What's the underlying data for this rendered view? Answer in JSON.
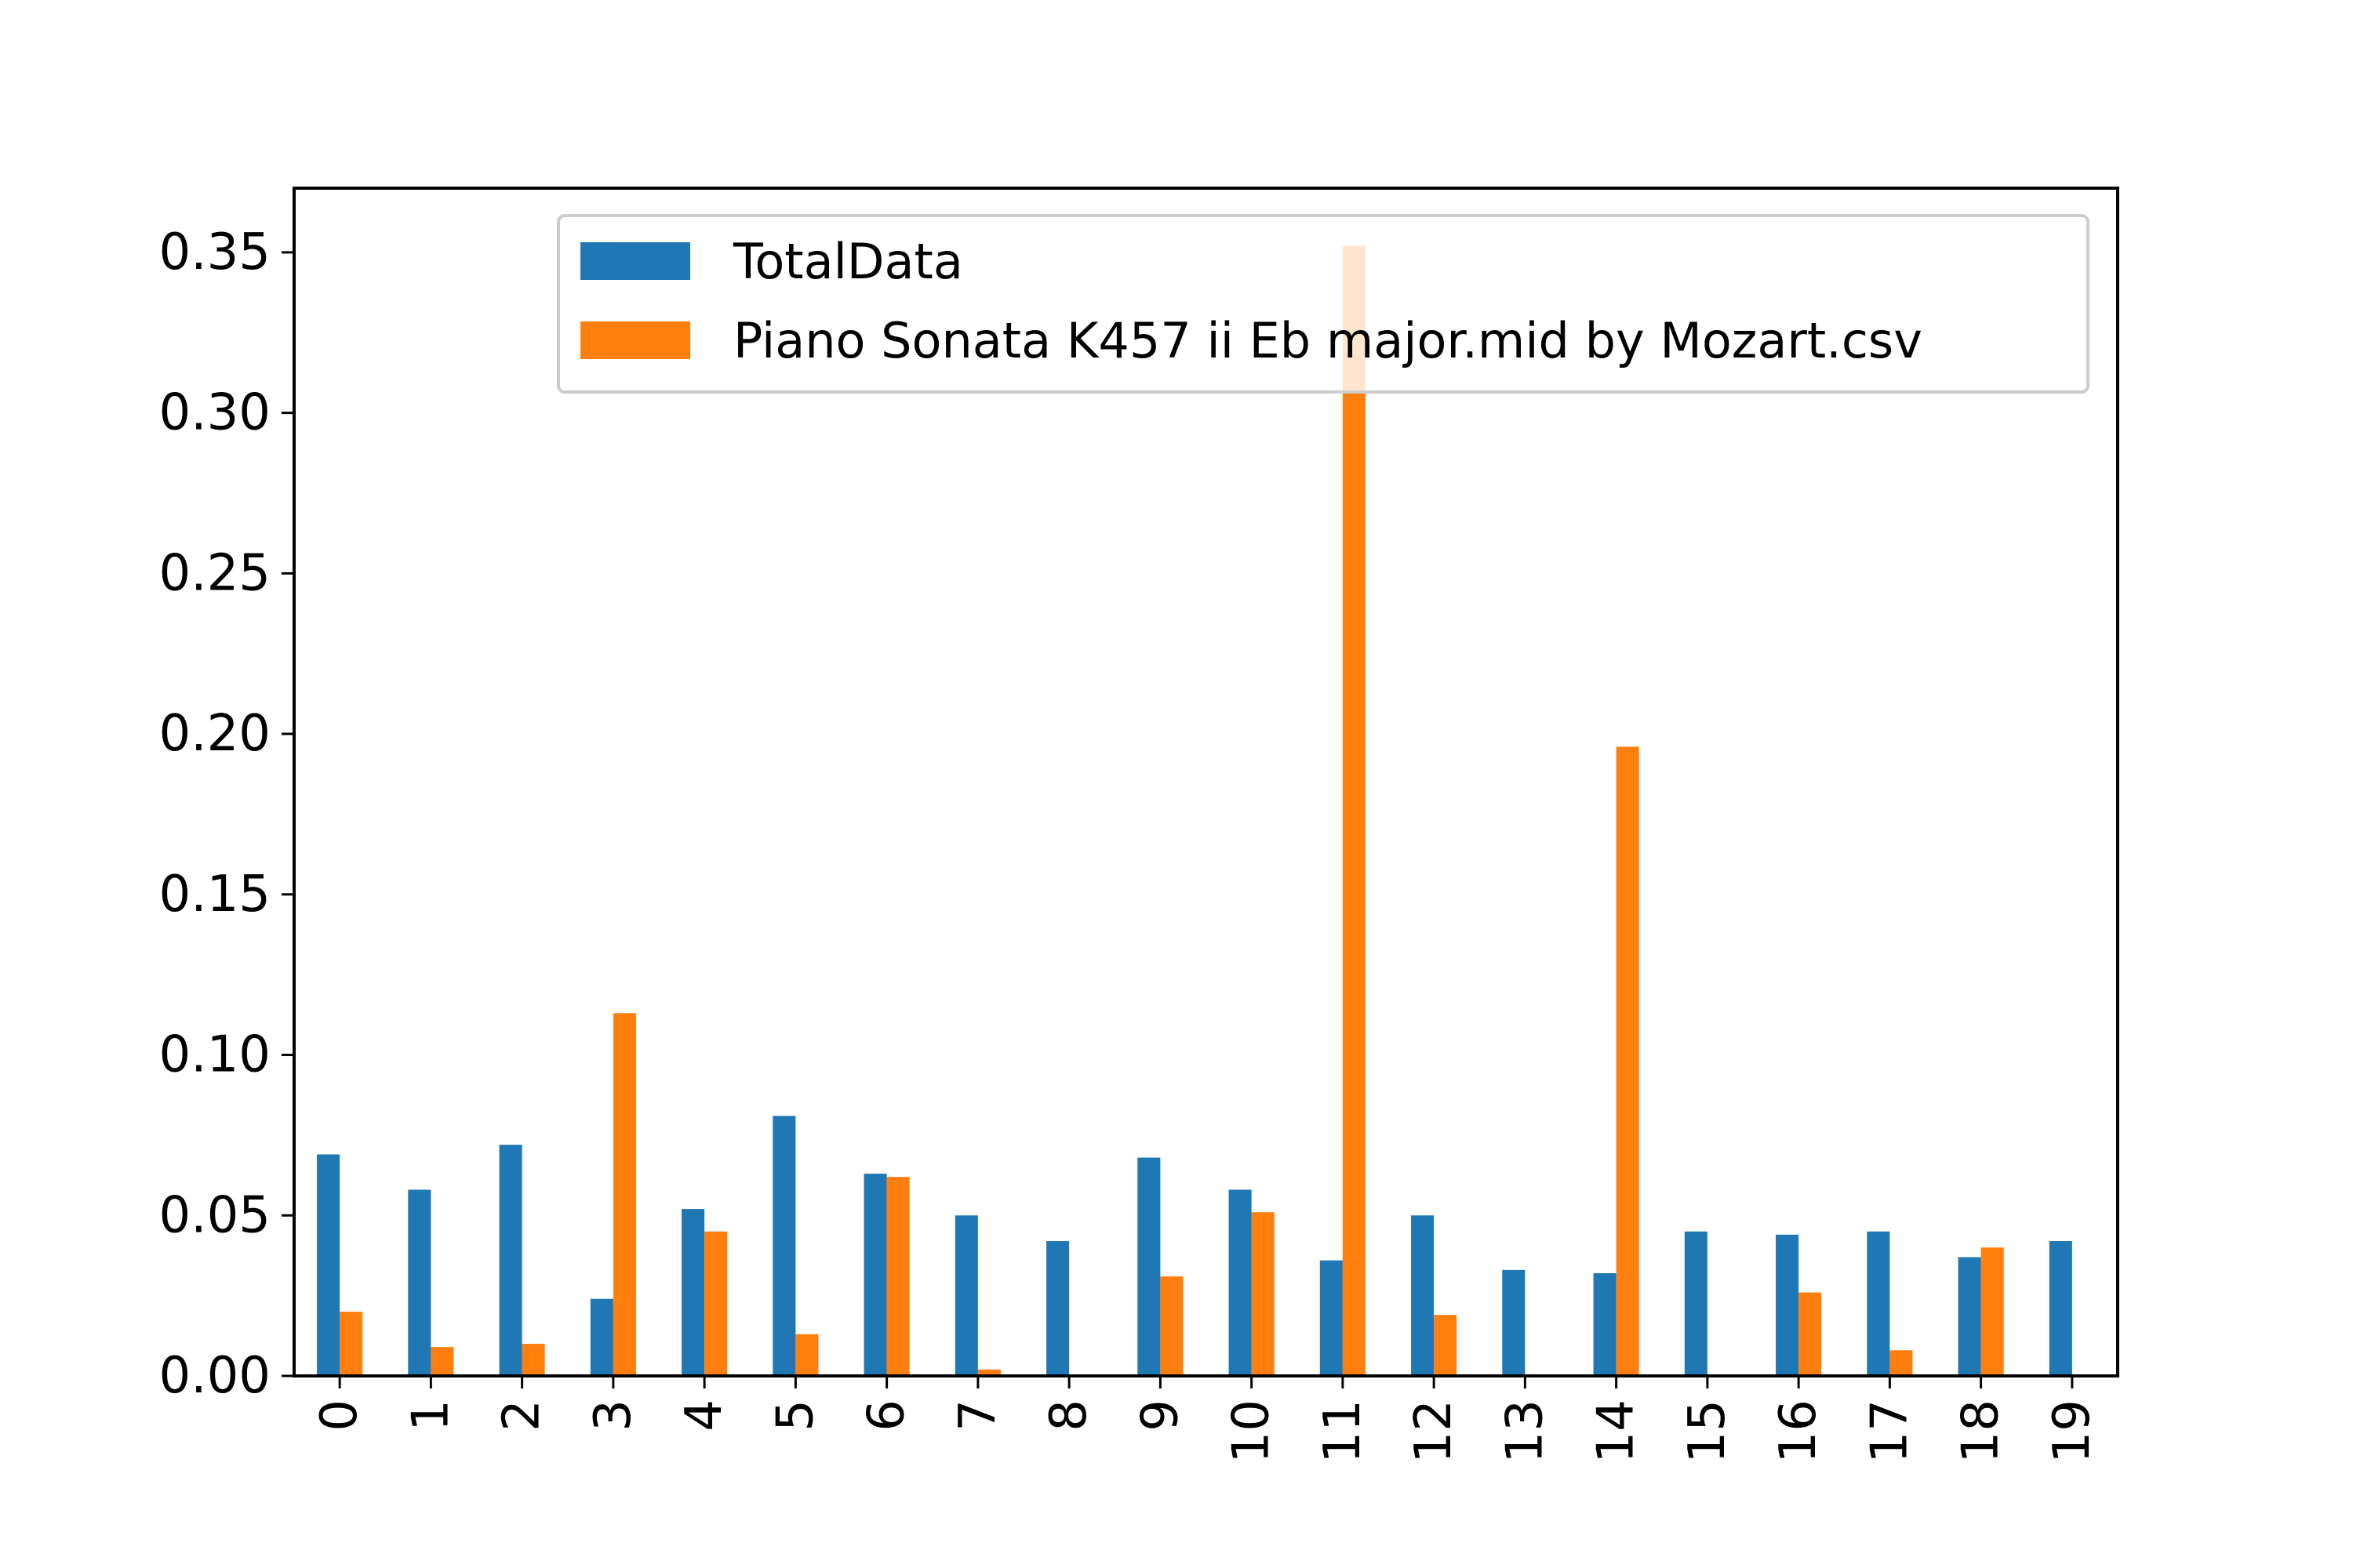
{
  "chart_data": {
    "type": "bar",
    "categories": [
      "0",
      "1",
      "2",
      "3",
      "4",
      "5",
      "6",
      "7",
      "8",
      "9",
      "10",
      "11",
      "12",
      "13",
      "14",
      "15",
      "16",
      "17",
      "18",
      "19"
    ],
    "series": [
      {
        "name": "TotalData",
        "color": "#1f77b4",
        "values": [
          0.069,
          0.058,
          0.072,
          0.024,
          0.052,
          0.081,
          0.063,
          0.05,
          0.042,
          0.068,
          0.058,
          0.036,
          0.05,
          0.033,
          0.032,
          0.045,
          0.044,
          0.045,
          0.037,
          0.042
        ]
      },
      {
        "name": "Piano Sonata K457 ii Eb major.mid by Mozart.csv",
        "color": "#ff7f0e",
        "values": [
          0.02,
          0.009,
          0.01,
          0.113,
          0.045,
          0.013,
          0.062,
          0.002,
          0.0,
          0.031,
          0.051,
          0.352,
          0.019,
          0.0,
          0.196,
          0.0,
          0.026,
          0.008,
          0.04,
          0.0
        ]
      }
    ],
    "yticks": [
      "0.00",
      "0.05",
      "0.10",
      "0.15",
      "0.20",
      "0.25",
      "0.30",
      "0.35"
    ],
    "ylim": [
      0,
      0.37
    ],
    "xlabel": "",
    "ylabel": "",
    "title": "",
    "grid": false,
    "legend_position": "top-center",
    "x_tick_rotation": 90
  }
}
